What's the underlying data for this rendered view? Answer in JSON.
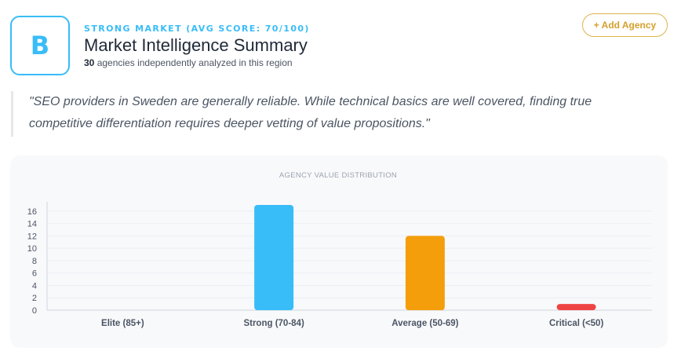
{
  "header": {
    "grade_letter": "B",
    "market_status": "STRONG MARKET (AVG SCORE: 70/100)",
    "title": "Market Intelligence Summary",
    "agency_count": "30",
    "agency_count_suffix": " agencies independently analyzed in this region",
    "add_agency_label": "+ Add Agency"
  },
  "quote": {
    "text": "\"SEO providers in Sweden are generally reliable. While technical basics are well covered, finding true competitive differentiation requires deeper vetting of value propositions.\""
  },
  "colors": {
    "accent": "#38bdf8",
    "gold": "#e0b34a",
    "strong": "#38bdf8",
    "average": "#f59e0b",
    "critical": "#ef4444"
  },
  "chart_data": {
    "type": "bar",
    "title": "AGENCY VALUE DISTRIBUTION",
    "categories": [
      "Elite (85+)",
      "Strong (70-84)",
      "Average (50-69)",
      "Critical (<50)"
    ],
    "values": [
      0,
      17,
      12,
      1
    ],
    "bar_colors": [
      "#38bdf8",
      "#38bdf8",
      "#f59e0b",
      "#ef4444"
    ],
    "yticks": [
      0,
      2,
      4,
      6,
      8,
      10,
      12,
      14,
      16
    ],
    "ylim": [
      0,
      17
    ],
    "xlabel": "",
    "ylabel": "",
    "grid": true,
    "legend": "none"
  }
}
